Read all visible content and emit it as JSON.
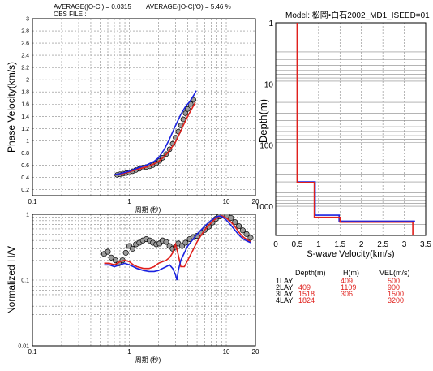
{
  "header": {
    "avg_abs_text": "AVERAGE(|O-C|) = 0.0315",
    "avg_rel_text": "AVERAGE(|O-C|/O) = 5.46 %",
    "obs_file_text": "OBS FILE :"
  },
  "model_title": "Model: 松岡•白石2002_MD1_ISEED=01",
  "colors": {
    "observed_marker_fill": "#9a9a9a",
    "model_a": "#e0201c",
    "model_b": "#1a22e0",
    "grid": "#888888"
  },
  "chart_data": [
    {
      "type": "scatter",
      "ylabel": "Phase Velocity(km/s)",
      "xlabel": "周期 (秒)",
      "xscale": "log",
      "xlim": [
        0.1,
        20
      ],
      "ylim": [
        0.1,
        3.0
      ],
      "x_ticks": [
        "0.1",
        "1",
        "10",
        "20"
      ],
      "y_ticks": [
        "0.2",
        "0.4",
        "0.6",
        "0.8",
        "1",
        "1.2",
        "1.4",
        "1.6",
        "1.8",
        "2",
        "2.2",
        "2.4",
        "2.6",
        "2.8",
        "3"
      ],
      "grid": true,
      "observed": {
        "x": [
          0.75,
          0.8,
          0.86,
          0.93,
          1.0,
          1.08,
          1.17,
          1.27,
          1.38,
          1.5,
          1.62,
          1.75,
          1.9,
          2.05,
          2.2,
          2.4,
          2.6,
          2.8,
          3.0,
          3.2,
          3.4,
          3.6,
          3.8,
          4.0,
          4.3,
          4.6
        ],
        "y": [
          0.44,
          0.45,
          0.46,
          0.47,
          0.48,
          0.5,
          0.52,
          0.54,
          0.56,
          0.57,
          0.58,
          0.6,
          0.63,
          0.67,
          0.72,
          0.78,
          0.86,
          0.95,
          1.05,
          1.15,
          1.25,
          1.35,
          1.45,
          1.52,
          1.6,
          1.67
        ]
      },
      "series": [
        {
          "x": [
            0.7,
            0.8,
            0.9,
            1.0,
            1.2,
            1.5,
            1.8,
            2.0,
            2.3,
            2.6,
            3.0,
            3.3,
            3.6,
            4.0,
            4.4,
            4.8
          ],
          "y": [
            0.44,
            0.45,
            0.47,
            0.49,
            0.53,
            0.57,
            0.62,
            0.66,
            0.74,
            0.84,
            0.98,
            1.12,
            1.25,
            1.4,
            1.52,
            1.63
          ]
        },
        {
          "x": [
            0.7,
            0.8,
            0.9,
            1.0,
            1.2,
            1.5,
            1.8,
            2.0,
            2.3,
            2.6,
            3.0,
            3.4,
            3.8,
            4.2,
            4.6,
            4.9
          ],
          "y": [
            0.44,
            0.46,
            0.48,
            0.5,
            0.55,
            0.6,
            0.66,
            0.72,
            0.86,
            1.03,
            1.25,
            1.43,
            1.56,
            1.64,
            1.74,
            1.82
          ]
        }
      ]
    },
    {
      "type": "scatter",
      "ylabel": "Normalized H/V",
      "xlabel": "周期 (秒)",
      "xscale": "log",
      "yscale": "log",
      "xlim": [
        0.1,
        20
      ],
      "ylim": [
        0.01,
        1
      ],
      "x_ticks": [
        "0.1",
        "1",
        "10",
        "20"
      ],
      "y_ticks": [
        "0.01",
        "0.1",
        "1"
      ],
      "grid": true,
      "observed": {
        "x": [
          0.55,
          0.6,
          0.65,
          0.72,
          0.78,
          0.85,
          0.92,
          1.0,
          1.08,
          1.17,
          1.27,
          1.38,
          1.5,
          1.62,
          1.75,
          1.9,
          2.05,
          2.2,
          2.4,
          2.6,
          2.8,
          3.0,
          3.2,
          3.5,
          3.8,
          4.2,
          4.6,
          5.0,
          5.5,
          6.0,
          6.6,
          7.2,
          7.8,
          8.5,
          9.3,
          10.2,
          11.2,
          12.3,
          13.5,
          14.8,
          16.2,
          17.8
        ],
        "y": [
          0.25,
          0.27,
          0.22,
          0.2,
          0.18,
          0.2,
          0.26,
          0.33,
          0.3,
          0.35,
          0.37,
          0.4,
          0.42,
          0.4,
          0.37,
          0.35,
          0.36,
          0.4,
          0.38,
          0.33,
          0.3,
          0.32,
          0.36,
          0.33,
          0.37,
          0.42,
          0.45,
          0.47,
          0.52,
          0.58,
          0.65,
          0.75,
          0.85,
          0.93,
          0.98,
          0.95,
          0.88,
          0.76,
          0.66,
          0.57,
          0.5,
          0.44
        ]
      },
      "series": [
        {
          "x": [
            0.55,
            0.62,
            0.7,
            0.8,
            0.9,
            1.0,
            1.1,
            1.2,
            1.4,
            1.6,
            1.8,
            2.0,
            2.2,
            2.4,
            2.6,
            2.8,
            3.0,
            3.2,
            3.4,
            3.7,
            4.0,
            4.5,
            5.0,
            5.5,
            6.0,
            6.5,
            7.0,
            7.5,
            8.0,
            8.5,
            9.0,
            10.0,
            11.0,
            12.0,
            13.0,
            14.0,
            15.0,
            16.5,
            18.0
          ],
          "y": [
            0.18,
            0.18,
            0.17,
            0.19,
            0.2,
            0.19,
            0.17,
            0.16,
            0.15,
            0.15,
            0.16,
            0.18,
            0.19,
            0.2,
            0.22,
            0.26,
            0.35,
            0.24,
            0.16,
            0.16,
            0.2,
            0.28,
            0.38,
            0.48,
            0.58,
            0.67,
            0.74,
            0.82,
            0.88,
            0.93,
            0.95,
            0.88,
            0.78,
            0.68,
            0.58,
            0.5,
            0.45,
            0.41,
            0.38
          ]
        },
        {
          "x": [
            0.55,
            0.62,
            0.7,
            0.8,
            0.9,
            1.0,
            1.1,
            1.2,
            1.4,
            1.6,
            1.8,
            2.0,
            2.2,
            2.4,
            2.6,
            2.8,
            3.0,
            3.1,
            3.2,
            3.4,
            3.7,
            4.0,
            4.5,
            5.0,
            5.5,
            6.0,
            6.5,
            7.0,
            7.5,
            8.0,
            8.5,
            9.0,
            10.0,
            11.0,
            12.0,
            13.0,
            14.0,
            15.0,
            16.5,
            18.0
          ],
          "y": [
            0.17,
            0.17,
            0.16,
            0.17,
            0.18,
            0.17,
            0.16,
            0.15,
            0.14,
            0.135,
            0.135,
            0.14,
            0.15,
            0.16,
            0.17,
            0.15,
            0.12,
            0.1,
            0.14,
            0.2,
            0.26,
            0.33,
            0.41,
            0.5,
            0.58,
            0.66,
            0.74,
            0.81,
            0.87,
            0.92,
            0.94,
            0.92,
            0.82,
            0.7,
            0.6,
            0.52,
            0.46,
            0.42,
            0.39,
            0.37
          ]
        }
      ]
    },
    {
      "type": "line",
      "title": "Model: 松岡•白石2002_MD1_ISEED=01",
      "xlabel": "S-wave Velocity(km/s)",
      "ylabel": "Depth(m)",
      "yscale": "log",
      "yinverted": true,
      "xlim": [
        0,
        3.5
      ],
      "ylim": [
        1,
        3000
      ],
      "x_ticks": [
        "0",
        "0.5",
        "1",
        "1.5",
        "2",
        "2.5",
        "3",
        "3.5"
      ],
      "y_ticks": [
        "1",
        "10",
        "100",
        "1000"
      ],
      "grid": true,
      "series": [
        {
          "depth": [
            1,
            409,
            409,
            1518,
            1518,
            1824,
            1824,
            3000
          ],
          "vs": [
            0.5,
            0.5,
            0.9,
            0.9,
            1.5,
            1.5,
            3.2,
            3.2
          ]
        },
        {
          "depth": [
            400,
            400,
            1400,
            1400,
            1750,
            1750
          ],
          "vs": [
            0.5,
            0.92,
            0.92,
            1.48,
            1.48,
            3.25
          ]
        }
      ]
    }
  ],
  "layer_table": {
    "headers": [
      "Depth(m)",
      "H(m)",
      "VEL(m/s)"
    ],
    "rows": [
      {
        "label": "1LAY",
        "depth": "",
        "h": "409",
        "vel": "500"
      },
      {
        "label": "2LAY",
        "depth": "409",
        "h": "1109",
        "vel": "900"
      },
      {
        "label": "3LAY",
        "depth": "1518",
        "h": "306",
        "vel": "1500"
      },
      {
        "label": "4LAY",
        "depth": "1824",
        "h": "",
        "vel": "3200"
      }
    ]
  }
}
